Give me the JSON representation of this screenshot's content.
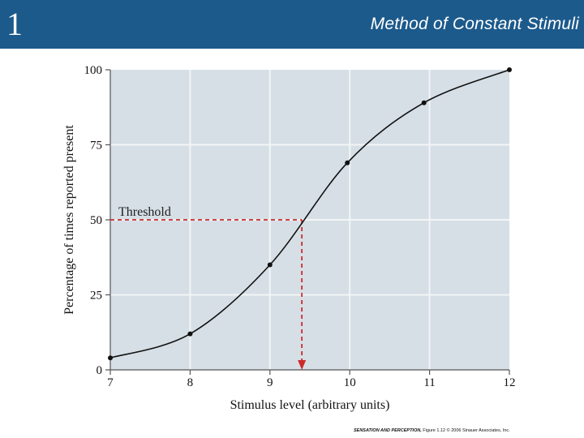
{
  "slide": {
    "number": "1",
    "title": "Method of Constant Stimuli"
  },
  "caption": {
    "book": "SENSATION AND PERCEPTION,",
    "figure": "Figure 1.12 © 2006 Sinauer Associates, Inc."
  },
  "colors": {
    "header": "#1c5a8c",
    "plot_background": "#d6dfe6",
    "grid": "#f2f5f7",
    "curve": "#111111",
    "threshold": "#cc2a2a"
  },
  "chart_data": {
    "type": "line",
    "xlabel": "Stimulus level (arbitrary units)",
    "ylabel": "Percentage of times reported present",
    "xlim": [
      7,
      12
    ],
    "ylim": [
      0,
      100
    ],
    "x_ticks": [
      "7",
      "8",
      "9",
      "10",
      "11",
      "12"
    ],
    "y_ticks": [
      "0",
      "25",
      "50",
      "75",
      "100"
    ],
    "grid": true,
    "series": [
      {
        "points": [
          {
            "x": 7.0,
            "y": 4
          },
          {
            "x": 8.0,
            "y": 12
          },
          {
            "x": 9.0,
            "y": 35
          },
          {
            "x": 9.97,
            "y": 69
          },
          {
            "x": 10.93,
            "y": 89
          },
          {
            "x": 12.0,
            "y": 100
          }
        ]
      }
    ],
    "annotation": {
      "label": "Threshold",
      "y": 50,
      "x": 9.4
    }
  }
}
